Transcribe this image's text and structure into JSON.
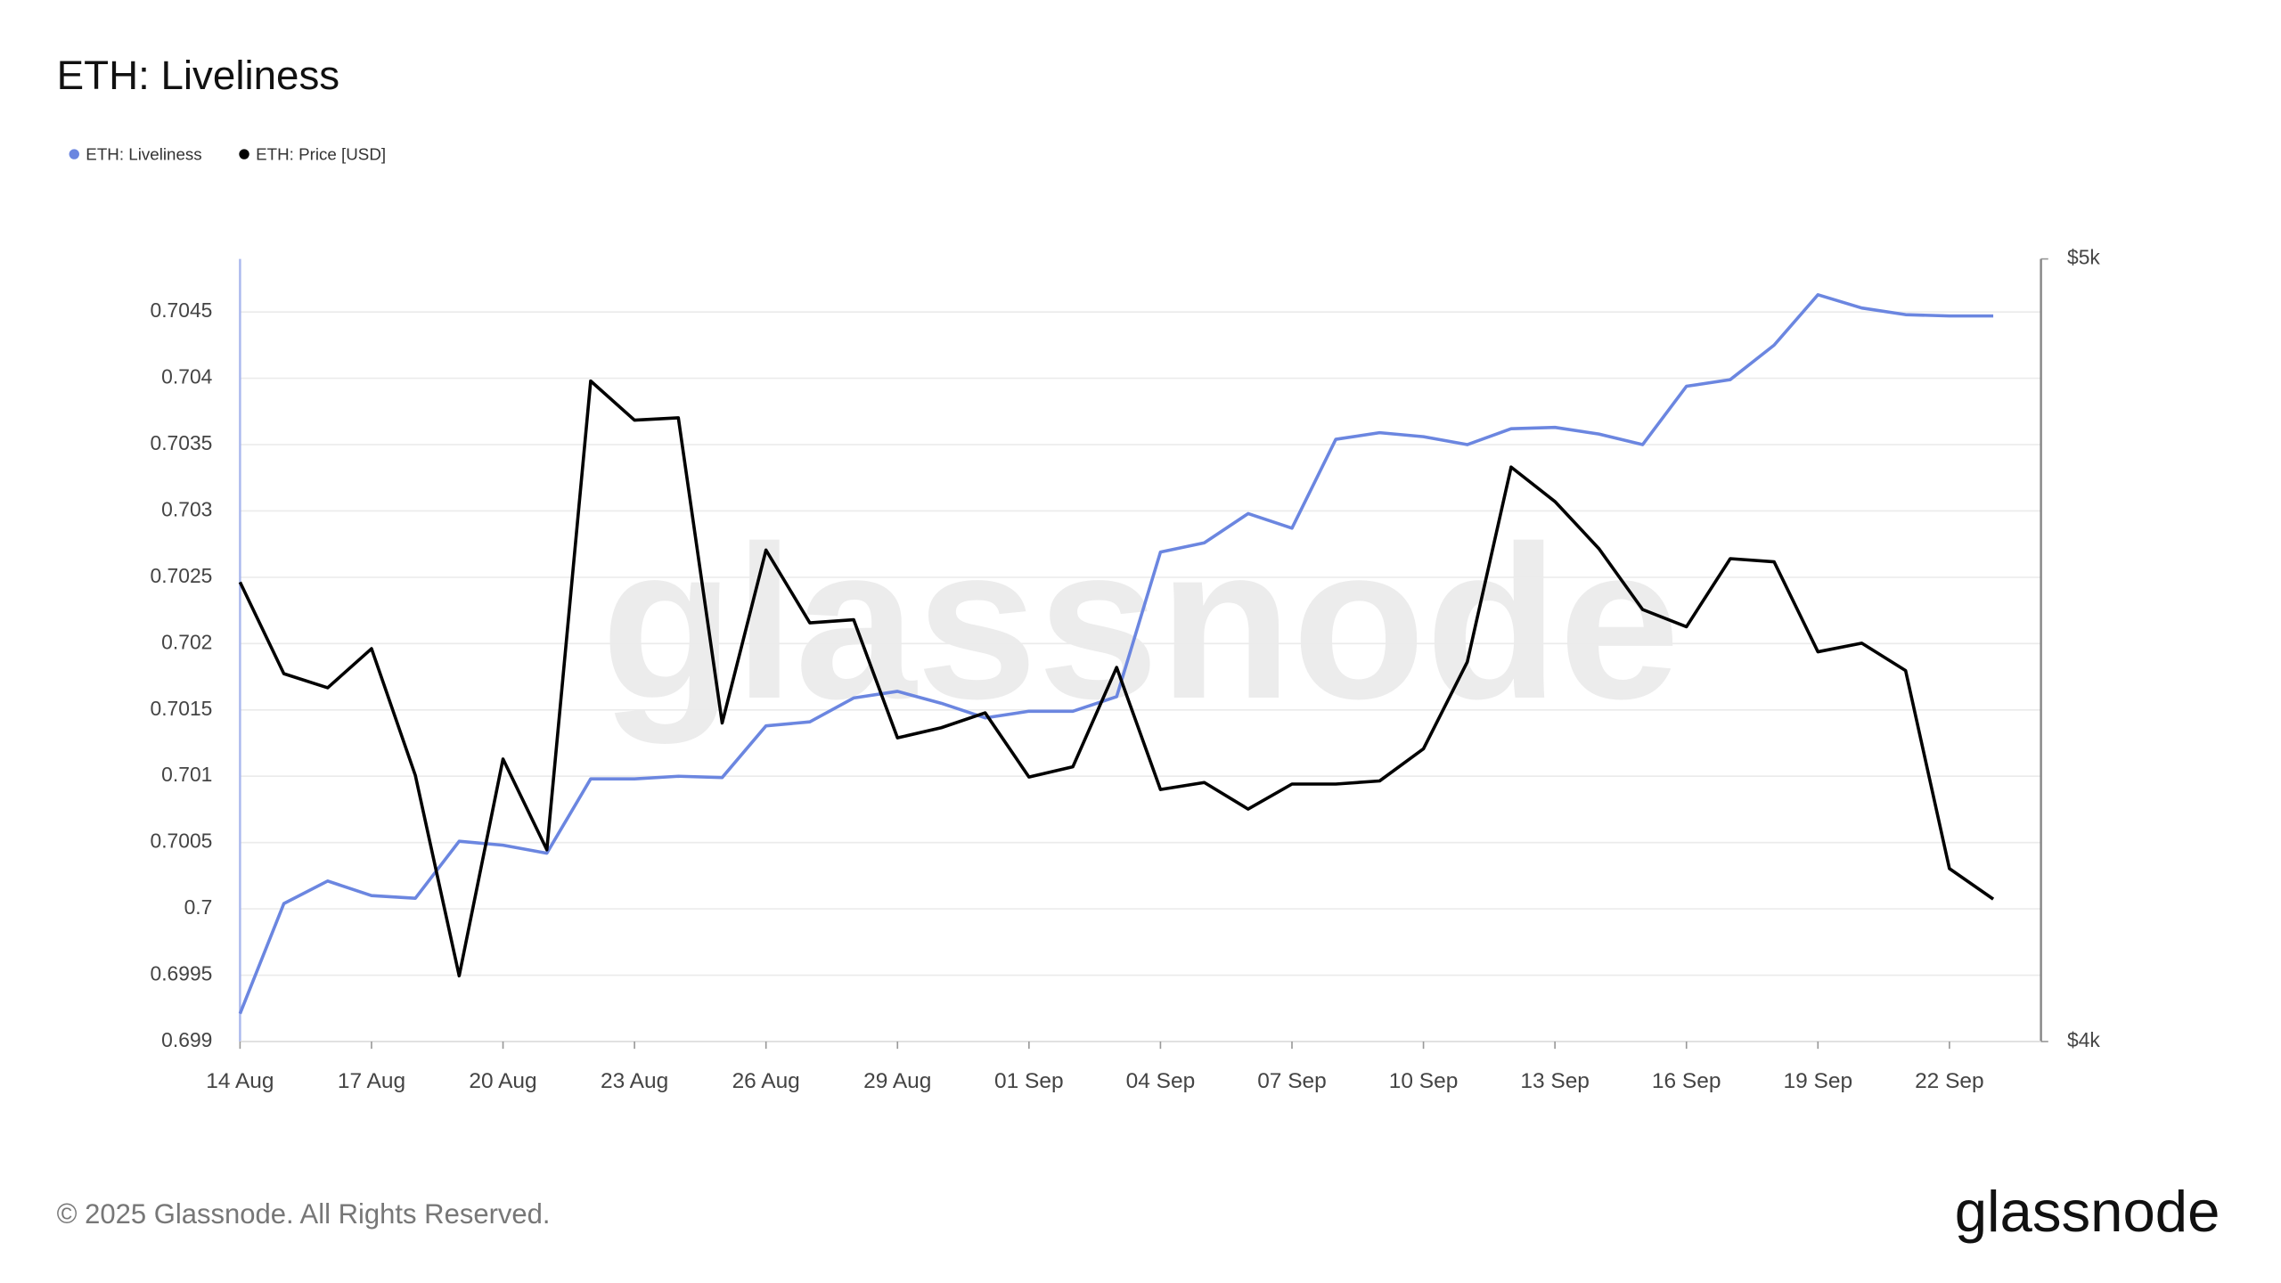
{
  "chart_data": {
    "type": "line",
    "title": "ETH: Liveliness",
    "watermark": "glassnode",
    "footer": "© 2025 Glassnode. All Rights Reserved.",
    "logo": "glassnode",
    "categories": [
      "14 Aug",
      null,
      null,
      "17 Aug",
      null,
      null,
      "20 Aug",
      null,
      null,
      "23 Aug",
      null,
      null,
      "26 Aug",
      null,
      null,
      "29 Aug",
      null,
      null,
      "01 Sep",
      null,
      null,
      "04 Sep",
      null,
      null,
      "07 Sep",
      null,
      null,
      "10 Sep",
      null,
      null,
      "13 Sep",
      null,
      null,
      "16 Sep",
      null,
      null,
      "19 Sep",
      null,
      null,
      "22 Sep",
      null
    ],
    "series": [
      {
        "name": "ETH: Liveliness",
        "color": "#6b86e0",
        "axis": "y",
        "values": [
          0.69921,
          0.70004,
          0.70021,
          0.7001,
          0.70008,
          0.70051,
          0.70048,
          0.70042,
          0.70098,
          0.70098,
          0.701,
          0.70099,
          0.70138,
          0.70141,
          0.70159,
          0.70164,
          0.70155,
          0.70144,
          0.70149,
          0.70149,
          0.7016,
          0.70269,
          0.70276,
          0.70298,
          0.70287,
          0.70354,
          0.70359,
          0.70356,
          0.7035,
          0.70362,
          0.70363,
          0.70358,
          0.7035,
          0.70394,
          0.70399,
          0.70425,
          0.70463,
          0.70453,
          0.70448,
          0.70447,
          0.70447
        ]
      },
      {
        "name": "ETH: Price [USD]",
        "color": "#000000",
        "axis": "y2",
        "values": [
          4587,
          4470,
          4452,
          4502,
          4340,
          4084,
          4361,
          4245,
          4844,
          4794,
          4797,
          4407,
          4628,
          4535,
          4539,
          4388,
          4401,
          4420,
          4338,
          4351,
          4478,
          4322,
          4331,
          4297,
          4329,
          4329,
          4333,
          4374,
          4485,
          4734,
          4690,
          4630,
          4552,
          4530,
          4617,
          4613,
          4498,
          4509,
          4474,
          4221,
          4182
        ]
      }
    ],
    "ylim": [
      0.699,
      0.7049
    ],
    "yticks": [
      0.699,
      0.6995,
      0.7,
      0.7005,
      0.701,
      0.7015,
      0.702,
      0.7025,
      0.703,
      0.7035,
      0.704,
      0.7045
    ],
    "y2lim": [
      4000,
      5000
    ],
    "y2ticks": [
      {
        "value": 4000,
        "label": "$4k"
      },
      {
        "value": 5000,
        "label": "$5k"
      }
    ],
    "grid": true
  }
}
